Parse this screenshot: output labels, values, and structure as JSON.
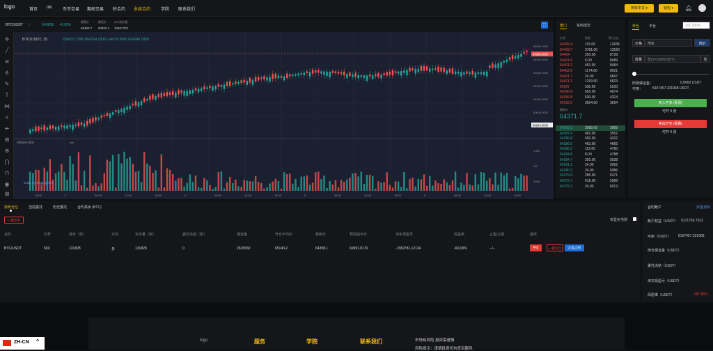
{
  "nav": {
    "logo_alt": "logo",
    "items": [
      "首页",
      "otc",
      "币币交易",
      "期权交易",
      "秒合约",
      "永续合约",
      "学院",
      "联系我们"
    ],
    "active_index": 5,
    "lang_button": "简体中文 ▾",
    "login_button": "钱包 ▾"
  },
  "ticker": {
    "pair": "BTC/USDT",
    "price": "64386$",
    "change": "+0.00%",
    "high_label": "最高价",
    "high": "65460.7",
    "low_label": "最低价",
    "low": "63552.4",
    "vol_label": "24H成交量",
    "vol": "10661702"
  },
  "chart": {
    "symbol_label": "BTC/USDT, 15",
    "ohlc": "O64152.7000  H64334.2000  L64079.3000  C64249.1000",
    "current_price_tag": "64386.0000",
    "low_tag": "58294.6000",
    "volume_label": "Volume (20)",
    "volume_sub": "n/a",
    "watermark": "Chart by TradingView",
    "y_ticks": [
      "65000.0000",
      "64000.0000",
      "63000.0000",
      "62000.0000",
      "61000.0000",
      "60000.0000",
      "59000.0000"
    ],
    "vol_ticks": [
      "1.5M",
      "1M",
      "500K"
    ],
    "x_ticks": [
      "18:00",
      "3",
      "06:00",
      "12:00",
      "18:00",
      "4",
      "06:00",
      "12:00",
      "18:00",
      "5",
      "06:00",
      "12:00",
      "18:00",
      "6",
      "06:00",
      "12:00",
      "18:00"
    ],
    "colors": {
      "up": "#26a69a",
      "down": "#ef5350",
      "bg": "#1b2030"
    }
  },
  "orderbook": {
    "tabs": [
      "盘口",
      "实时成交"
    ],
    "headers": [
      "价格",
      "数量",
      "累计(张)"
    ],
    "asks": [
      [
        "64405.4",
        "115.00",
        "12635"
      ],
      [
        "64403.7",
        "3781.00",
        "12520"
      ],
      [
        "64404",
        "250.00",
        "8739"
      ],
      [
        "64401.6",
        "5.00",
        "8489"
      ],
      [
        "64401.2",
        "463.00",
        "8484"
      ],
      [
        "64402.9",
        "1174.00",
        "8021"
      ],
      [
        "64401.7",
        "24.00",
        "6847"
      ],
      [
        "64401.1",
        "1293.00",
        "6823"
      ],
      [
        "64397",
        "556.00",
        "5530"
      ],
      [
        "64396.9",
        "650.00",
        "4974"
      ],
      [
        "64396.8",
        "630.00",
        "4324"
      ],
      [
        "64393.9",
        "3694.00",
        "3694"
      ]
    ],
    "last_label": "最新价",
    "last_price": "64371.7",
    "bids": [
      [
        "64393.9",
        "3089.00",
        "3089"
      ],
      [
        "64387.4",
        "463.00",
        "3552"
      ],
      [
        "64386.8",
        "650.00",
        "4202"
      ],
      [
        "64386.5",
        "463.00",
        "4665"
      ],
      [
        "64386.2",
        "115.00",
        "4780"
      ],
      [
        "64384.8",
        "8.00",
        "4788"
      ],
      [
        "64384.7",
        "250.00",
        "5038"
      ],
      [
        "64381.3",
        "24.00",
        "5062"
      ],
      [
        "64380.3",
        "24.00",
        "5086"
      ],
      [
        "64379.9",
        "285.00",
        "5371"
      ],
      [
        "64379.7",
        "618.00",
        "5989"
      ],
      [
        "64379.2",
        "24.00",
        "6013"
      ]
    ]
  },
  "order_panel": {
    "tabs": [
      "开仓",
      "平仓"
    ],
    "leverage_placeholder": "X(1-100X)",
    "price_label": "价格",
    "price_type": "市价",
    "price_type_button": "市价",
    "qty_label": "数量",
    "qty_placeholder": "张(1=1000USDT)",
    "qty_unit": "张",
    "margin_label": "所需保证金：",
    "margin_value": "0.0000 USDT",
    "avail_label": "可用：",
    "avail_value": "8107457.331968 USDT",
    "buy_button": "买入开多 (看涨)",
    "buy_sub": "可开 0 张",
    "sell_button": "卖出开空 (看跌)",
    "sell_sub": "可开 0 张",
    "colors": {
      "buy": "#4caf50",
      "sell": "#e53935"
    }
  },
  "positions": {
    "tabs": [
      "持有仓位",
      "当前委托",
      "历史委托",
      "合约高水 (BTC)"
    ],
    "close_all": "一键全平",
    "only_current": "仅显示当前",
    "columns": [
      "合约",
      "杠杆",
      "持仓（张）",
      "方向",
      "可平量（张）",
      "委托冻结（张）",
      "保证金",
      "开仓平均价",
      "最新价",
      "预估强平价",
      "未实现盈亏",
      "收益率",
      "止盈/止损",
      "操作"
    ],
    "row": [
      "BTC/USDT",
      "50X",
      "131828",
      "多",
      "131828",
      "0",
      "2636560",
      "65140.2",
      "64358.1",
      "60091.8170",
      "-1582781.12134",
      "-60.03%",
      "--/--"
    ],
    "actions": [
      "平仓",
      "一键平仓",
      "止盈止损"
    ]
  },
  "account": {
    "title": "合约账户",
    "link": "资金划转",
    "rows": [
      {
        "label": "账户权益（USDT）",
        "value": "9171759.7522"
      },
      {
        "label": "可用（USDT）",
        "value": "8107457.331968"
      },
      {
        "label": "持仓保证金（USDT）",
        "value": ""
      },
      {
        "label": "委托冻结（USDT）",
        "value": ""
      },
      {
        "label": "未实现盈亏（USDT）",
        "value": ""
      },
      {
        "label": "风险率（USDT）",
        "value": "587.85%"
      }
    ]
  },
  "footer": {
    "logo_alt": "logo",
    "cols": [
      "服务",
      "学院",
      "联系我们"
    ],
    "notice_1": "市场有风险 投资需谨慎",
    "notice_2": "风险提示：谨慎投资切勿盲目跟风"
  },
  "lang_badge": "ZH-CN"
}
